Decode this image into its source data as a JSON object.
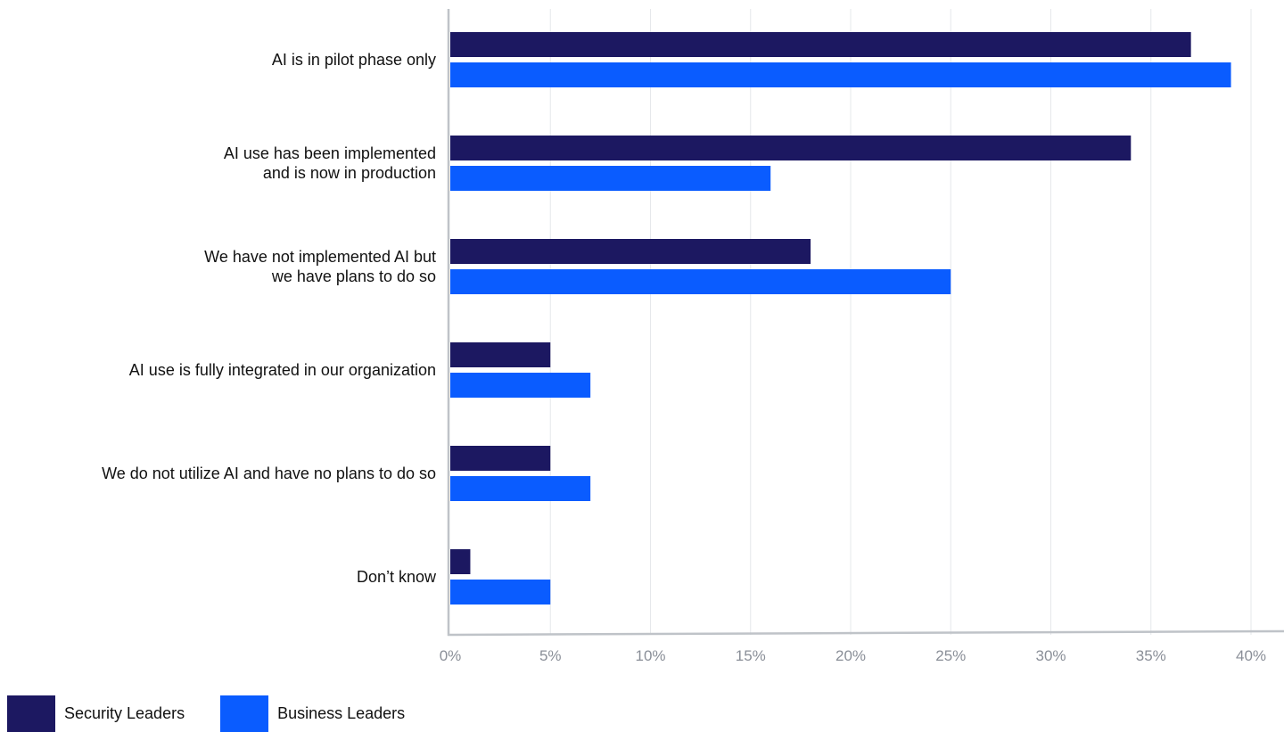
{
  "chart_data": {
    "type": "bar",
    "orientation": "horizontal",
    "categories": [
      [
        "AI is in pilot phase only"
      ],
      [
        "AI use has been implemented",
        "and is now in production"
      ],
      [
        "We have not implemented AI but",
        "we have plans to do so"
      ],
      [
        "AI use is fully integrated in our organization"
      ],
      [
        "We do not utilize AI and have no plans to do so"
      ],
      [
        "Don’t know"
      ]
    ],
    "series": [
      {
        "name": "Security Leaders",
        "color": "#1c1861",
        "values": [
          37,
          34,
          18,
          5,
          5,
          1
        ]
      },
      {
        "name": "Business Leaders",
        "color": "#0a5cff",
        "values": [
          39,
          16,
          25,
          7,
          7,
          5
        ]
      }
    ],
    "xlim": [
      0,
      40
    ],
    "xticks": [
      0,
      5,
      10,
      15,
      20,
      25,
      30,
      35,
      40
    ],
    "tick_suffix": "%",
    "xticklabels": [
      "0%",
      "5%",
      "10%",
      "15%",
      "20%",
      "25%",
      "30%",
      "35%",
      "40%"
    ],
    "grid": "vertical",
    "legend_position": "bottom-left",
    "title": "",
    "xlabel": "",
    "ylabel": ""
  },
  "legend": {
    "items": [
      {
        "label": "Security Leaders",
        "color": "#1c1861"
      },
      {
        "label": "Business Leaders",
        "color": "#0a5cff"
      }
    ]
  }
}
